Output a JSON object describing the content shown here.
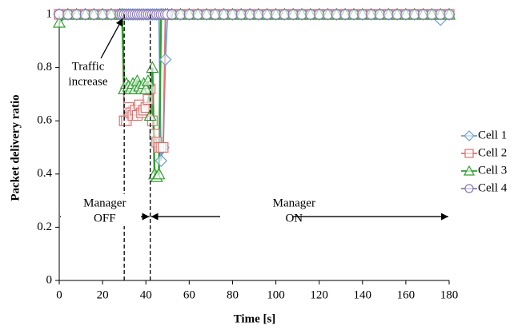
{
  "chart_data": {
    "type": "line",
    "x_label": "Time [s]",
    "y_label": "Packet delivery ratio",
    "x": [
      0,
      4,
      8,
      12,
      16,
      20,
      24,
      28,
      29,
      30,
      31,
      32,
      33,
      34,
      35,
      36,
      37,
      38,
      39,
      40,
      41,
      42,
      43,
      44,
      45,
      46,
      47,
      48,
      49,
      50,
      52,
      56,
      60,
      64,
      68,
      72,
      76,
      80,
      84,
      88,
      92,
      96,
      100,
      104,
      108,
      112,
      116,
      120,
      124,
      128,
      132,
      136,
      140,
      144,
      148,
      152,
      156,
      160,
      164,
      168,
      172,
      176,
      180
    ],
    "series": [
      {
        "name": "Cell 1",
        "color": "#6f9fd4",
        "marker": "diamond",
        "values": [
          1,
          1,
          1,
          1,
          1,
          1,
          1,
          1,
          1,
          1,
          1,
          1,
          1,
          1,
          1,
          1,
          1,
          1,
          1,
          1,
          1,
          1,
          1,
          1,
          1,
          1,
          0.45,
          0.5,
          0.83,
          1,
          1,
          1,
          1,
          1,
          1,
          1,
          1,
          1,
          1,
          1,
          1,
          1,
          1,
          1,
          1,
          1,
          1,
          1,
          1,
          1,
          1,
          1,
          1,
          1,
          1,
          1,
          1,
          1,
          1,
          1,
          1,
          0.98,
          1
        ]
      },
      {
        "name": "Cell 2",
        "color": "#d9736f",
        "marker": "square",
        "values": [
          1,
          1,
          1,
          1,
          1,
          1,
          1,
          1,
          1,
          0.6,
          0.6,
          0.65,
          0.63,
          0.62,
          0.64,
          0.62,
          0.66,
          0.63,
          0.64,
          0.65,
          0.68,
          0.72,
          0.6,
          0.55,
          0.52,
          0.5,
          0.5,
          0.5,
          1,
          1,
          1,
          1,
          1,
          1,
          1,
          1,
          1,
          1,
          1,
          1,
          1,
          1,
          1,
          1,
          1,
          1,
          1,
          1,
          1,
          1,
          1,
          1,
          1,
          1,
          1,
          1,
          1,
          1,
          1,
          1,
          1,
          1,
          1
        ]
      },
      {
        "name": "Cell 3",
        "color": "#2ea02e",
        "marker": "triangle",
        "values": [
          0.97,
          1,
          1,
          1,
          1,
          1,
          1,
          1,
          1,
          0.72,
          0.74,
          0.73,
          0.72,
          0.74,
          0.72,
          0.75,
          0.73,
          0.72,
          0.74,
          0.72,
          0.75,
          0.62,
          0.8,
          0.4,
          0.39,
          0.4,
          1,
          1,
          1,
          1,
          1,
          1,
          1,
          1,
          1,
          1,
          1,
          1,
          1,
          1,
          1,
          1,
          1,
          1,
          1,
          1,
          1,
          1,
          1,
          1,
          1,
          1,
          1,
          1,
          1,
          1,
          1,
          1,
          1,
          1,
          1,
          1,
          1
        ]
      },
      {
        "name": "Cell 4",
        "color": "#8a78b8",
        "marker": "circle",
        "values": [
          1,
          1,
          1,
          1,
          1,
          1,
          1,
          1,
          1,
          1,
          1,
          1,
          1,
          1,
          1,
          1,
          1,
          1,
          1,
          1,
          1,
          1,
          1,
          1,
          1,
          1,
          1,
          1,
          1,
          1,
          1,
          1,
          1,
          1,
          1,
          1,
          1,
          1,
          1,
          1,
          1,
          1,
          1,
          1,
          1,
          1,
          1,
          1,
          1,
          1,
          1,
          1,
          1,
          1,
          1,
          1,
          1,
          1,
          1,
          1,
          1,
          1,
          1
        ]
      }
    ],
    "xlim": [
      0,
      180
    ],
    "xticks": [
      0,
      20,
      40,
      60,
      80,
      100,
      120,
      140,
      160,
      180
    ],
    "ylim": [
      0,
      1
    ],
    "yticks": [
      0,
      0.2,
      0.4,
      0.6,
      0.8,
      1
    ],
    "vlines": [
      30,
      42
    ],
    "annotations": {
      "traffic": [
        "Traffic",
        "increase"
      ],
      "manager_off": [
        "Manager",
        "OFF"
      ],
      "manager_on": [
        "Manager",
        "ON"
      ]
    }
  }
}
